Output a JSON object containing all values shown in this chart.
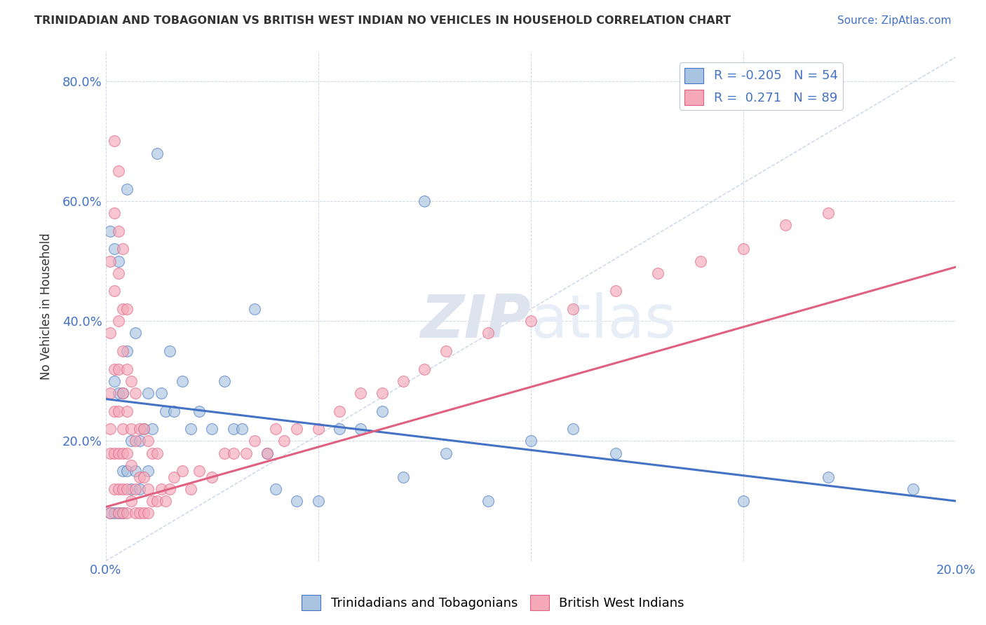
{
  "title": "TRINIDADIAN AND TOBAGONIAN VS BRITISH WEST INDIAN NO VEHICLES IN HOUSEHOLD CORRELATION CHART",
  "source": "Source: ZipAtlas.com",
  "ylabel": "No Vehicles in Household",
  "xlim": [
    0,
    0.2
  ],
  "ylim": [
    0,
    0.85
  ],
  "x_ticks": [
    0.0,
    0.05,
    0.1,
    0.15,
    0.2
  ],
  "y_ticks": [
    0.0,
    0.2,
    0.4,
    0.6,
    0.8
  ],
  "blue_R": -0.205,
  "blue_N": 54,
  "pink_R": 0.271,
  "pink_N": 89,
  "blue_color": "#a8c4e0",
  "pink_color": "#f4a8b8",
  "blue_line_color": "#4472c4",
  "pink_line_color": "#e06080",
  "ref_line_color": "#c8d4e8",
  "legend_blue_label": "Trinidadians and Tobagonians",
  "legend_pink_label": "British West Indians",
  "watermark_zip": "ZIP",
  "watermark_atlas": "atlas",
  "blue_scatter_x": [
    0.001,
    0.001,
    0.002,
    0.002,
    0.002,
    0.003,
    0.003,
    0.003,
    0.004,
    0.004,
    0.004,
    0.005,
    0.005,
    0.005,
    0.006,
    0.006,
    0.007,
    0.007,
    0.008,
    0.008,
    0.009,
    0.01,
    0.01,
    0.011,
    0.012,
    0.013,
    0.014,
    0.015,
    0.016,
    0.018,
    0.02,
    0.022,
    0.025,
    0.028,
    0.03,
    0.032,
    0.035,
    0.038,
    0.04,
    0.045,
    0.05,
    0.055,
    0.06,
    0.065,
    0.07,
    0.075,
    0.08,
    0.09,
    0.1,
    0.11,
    0.12,
    0.15,
    0.17,
    0.19
  ],
  "blue_scatter_y": [
    0.55,
    0.08,
    0.52,
    0.3,
    0.08,
    0.5,
    0.28,
    0.08,
    0.28,
    0.15,
    0.08,
    0.62,
    0.35,
    0.15,
    0.2,
    0.12,
    0.38,
    0.15,
    0.2,
    0.12,
    0.22,
    0.28,
    0.15,
    0.22,
    0.68,
    0.28,
    0.25,
    0.35,
    0.25,
    0.3,
    0.22,
    0.25,
    0.22,
    0.3,
    0.22,
    0.22,
    0.42,
    0.18,
    0.12,
    0.1,
    0.1,
    0.22,
    0.22,
    0.25,
    0.14,
    0.6,
    0.18,
    0.1,
    0.2,
    0.22,
    0.18,
    0.1,
    0.14,
    0.12
  ],
  "pink_scatter_x": [
    0.001,
    0.001,
    0.001,
    0.001,
    0.001,
    0.001,
    0.002,
    0.002,
    0.002,
    0.002,
    0.002,
    0.002,
    0.002,
    0.003,
    0.003,
    0.003,
    0.003,
    0.003,
    0.003,
    0.003,
    0.003,
    0.003,
    0.004,
    0.004,
    0.004,
    0.004,
    0.004,
    0.004,
    0.004,
    0.004,
    0.005,
    0.005,
    0.005,
    0.005,
    0.005,
    0.005,
    0.006,
    0.006,
    0.006,
    0.006,
    0.007,
    0.007,
    0.007,
    0.007,
    0.008,
    0.008,
    0.008,
    0.009,
    0.009,
    0.009,
    0.01,
    0.01,
    0.01,
    0.011,
    0.011,
    0.012,
    0.012,
    0.013,
    0.014,
    0.015,
    0.016,
    0.018,
    0.02,
    0.022,
    0.025,
    0.028,
    0.03,
    0.033,
    0.035,
    0.038,
    0.04,
    0.042,
    0.045,
    0.05,
    0.055,
    0.06,
    0.065,
    0.07,
    0.075,
    0.08,
    0.09,
    0.1,
    0.11,
    0.12,
    0.13,
    0.14,
    0.15,
    0.16,
    0.17
  ],
  "pink_scatter_y": [
    0.18,
    0.22,
    0.28,
    0.38,
    0.5,
    0.08,
    0.12,
    0.18,
    0.25,
    0.32,
    0.45,
    0.58,
    0.7,
    0.08,
    0.12,
    0.18,
    0.25,
    0.32,
    0.4,
    0.48,
    0.55,
    0.65,
    0.08,
    0.12,
    0.18,
    0.22,
    0.28,
    0.35,
    0.42,
    0.52,
    0.08,
    0.12,
    0.18,
    0.25,
    0.32,
    0.42,
    0.1,
    0.16,
    0.22,
    0.3,
    0.08,
    0.12,
    0.2,
    0.28,
    0.08,
    0.14,
    0.22,
    0.08,
    0.14,
    0.22,
    0.08,
    0.12,
    0.2,
    0.1,
    0.18,
    0.1,
    0.18,
    0.12,
    0.1,
    0.12,
    0.14,
    0.15,
    0.12,
    0.15,
    0.14,
    0.18,
    0.18,
    0.18,
    0.2,
    0.18,
    0.22,
    0.2,
    0.22,
    0.22,
    0.25,
    0.28,
    0.28,
    0.3,
    0.32,
    0.35,
    0.38,
    0.4,
    0.42,
    0.45,
    0.48,
    0.5,
    0.52,
    0.56,
    0.58
  ]
}
